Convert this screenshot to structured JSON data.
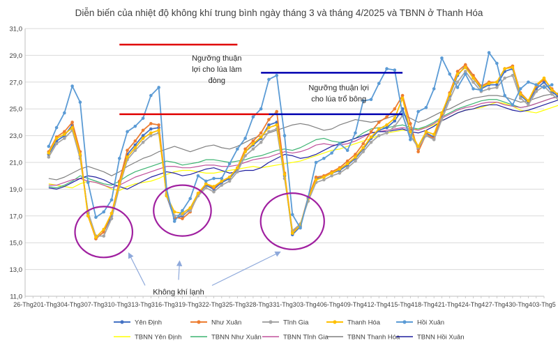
{
  "chart_data": {
    "type": "line",
    "title": "Diễn biến của nhiệt độ không khí trung bình ngày tháng 3 và tháng 4/2025 và TBNN ở Thanh Hóa",
    "xlabel": "",
    "ylabel": "",
    "ylim": [
      11,
      31
    ],
    "y_ticks": [
      "11,0",
      "13,0",
      "15,0",
      "17,0",
      "19,0",
      "21,0",
      "23,0",
      "25,0",
      "27,0",
      "29,0",
      "31,0"
    ],
    "x_start": "2025-02-26",
    "x_end": "2025-05-03",
    "x_tick_labels": [
      "26-Thg2",
      "01-Thg3",
      "04-Thg3",
      "07-Thg3",
      "10-Thg3",
      "13-Thg3",
      "16-Thg3",
      "19-Thg3",
      "22-Thg3",
      "25-Thg3",
      "28-Thg3",
      "31-Thg3",
      "03-Thg4",
      "06-Thg4",
      "09-Thg4",
      "12-Thg4",
      "15-Thg4",
      "18-Thg4",
      "21-Thg4",
      "24-Thg4",
      "27-Thg4",
      "30-Thg4",
      "03-Thg5"
    ],
    "grid": "horizontal",
    "legend_position": "bottom",
    "series": [
      {
        "name": "Yên Định",
        "color": "#4472c4",
        "marker": true,
        "x_first": "2025-03-01",
        "values": [
          21.6,
          22.6,
          23.0,
          23.8,
          21.5,
          17.2,
          15.3,
          15.8,
          17.0,
          19.5,
          21.6,
          22.3,
          23.0,
          23.5,
          23.6,
          18.5,
          16.8,
          17.0,
          17.5,
          18.6,
          19.3,
          19.0,
          19.5,
          19.8,
          20.5,
          21.8,
          22.3,
          22.8,
          23.8,
          24.0,
          20.0,
          15.6,
          16.2,
          18.3,
          19.8,
          19.9,
          20.2,
          20.4,
          20.8,
          21.3,
          22.0,
          22.8,
          23.4,
          23.6,
          24.1,
          25.0,
          23.4,
          22.0,
          23.2,
          22.9,
          24.5,
          26.0,
          27.5,
          28.2,
          27.3,
          26.5,
          26.8,
          26.8,
          27.8,
          28.0,
          26.0,
          25.5,
          26.5,
          27.0,
          26.3,
          25.8,
          26.2
        ]
      },
      {
        "name": "Như Xuân",
        "color": "#ed7d31",
        "marker": true,
        "x_first": "2025-03-01",
        "values": [
          21.8,
          22.9,
          23.3,
          24.0,
          21.8,
          17.0,
          15.3,
          15.8,
          17.2,
          19.6,
          21.9,
          22.6,
          23.4,
          23.9,
          23.8,
          18.6,
          16.9,
          16.8,
          17.3,
          18.6,
          19.4,
          19.1,
          19.6,
          19.9,
          20.6,
          22.0,
          22.6,
          23.2,
          24.2,
          24.8,
          20.2,
          15.8,
          16.3,
          18.4,
          19.9,
          20.0,
          20.3,
          20.6,
          21.1,
          21.6,
          22.4,
          23.3,
          24.0,
          24.4,
          25.0,
          26.0,
          23.9,
          21.8,
          23.1,
          22.8,
          24.6,
          26.2,
          27.8,
          28.3,
          27.5,
          26.7,
          27.0,
          27.0,
          28.0,
          28.2,
          26.2,
          25.6,
          26.7,
          27.2,
          26.5,
          25.9,
          26.4
        ]
      },
      {
        "name": "Tĩnh Gia",
        "color": "#a5a5a5",
        "marker": true,
        "x_first": "2025-03-01",
        "values": [
          21.4,
          22.4,
          22.8,
          23.4,
          21.3,
          17.3,
          15.5,
          15.5,
          16.8,
          19.2,
          21.2,
          21.9,
          22.5,
          23.0,
          23.2,
          18.7,
          17.0,
          17.1,
          17.4,
          18.5,
          19.1,
          18.8,
          19.3,
          19.6,
          20.3,
          21.5,
          22.0,
          22.5,
          23.3,
          23.5,
          19.8,
          15.9,
          16.4,
          18.1,
          19.5,
          19.7,
          20.0,
          20.2,
          20.6,
          21.1,
          21.8,
          22.5,
          23.0,
          23.2,
          23.7,
          24.5,
          23.0,
          22.1,
          23.0,
          22.7,
          24.2,
          25.7,
          27.0,
          27.8,
          27.0,
          26.3,
          26.5,
          26.6,
          27.3,
          27.5,
          25.8,
          25.3,
          26.3,
          26.7,
          26.1,
          25.6,
          26.0
        ]
      },
      {
        "name": "Thanh Hóa",
        "color": "#ffc000",
        "marker": true,
        "x_first": "2025-03-01",
        "values": [
          21.7,
          22.8,
          23.1,
          23.6,
          21.6,
          17.0,
          15.4,
          16.0,
          17.2,
          19.4,
          21.4,
          22.1,
          22.8,
          23.2,
          23.4,
          18.5,
          17.3,
          17.2,
          17.6,
          18.7,
          19.4,
          19.2,
          19.6,
          19.9,
          20.6,
          21.8,
          22.4,
          22.9,
          23.6,
          23.8,
          20.1,
          15.7,
          16.3,
          18.3,
          19.7,
          19.9,
          20.2,
          20.5,
          20.9,
          21.4,
          22.1,
          22.9,
          23.5,
          23.8,
          24.3,
          25.8,
          23.3,
          22.2,
          23.3,
          23.1,
          24.7,
          26.1,
          27.6,
          28.1,
          27.3,
          26.6,
          26.9,
          27.0,
          28.0,
          28.1,
          26.1,
          25.6,
          26.8,
          27.3,
          26.4,
          26.0,
          27.1
        ]
      },
      {
        "name": "Hồi Xuân",
        "color": "#5b9bd5",
        "marker": true,
        "x_first": "2025-03-01",
        "values": [
          22.2,
          23.6,
          24.7,
          26.7,
          25.5,
          19.5,
          16.9,
          17.3,
          18.2,
          21.3,
          23.3,
          23.7,
          24.3,
          26.0,
          26.6,
          19.0,
          16.6,
          17.4,
          18.3,
          20.0,
          19.6,
          19.8,
          19.8,
          20.9,
          22.0,
          22.8,
          24.4,
          25.0,
          27.2,
          27.5,
          23.0,
          17.1,
          16.1,
          18.4,
          21.0,
          21.3,
          21.7,
          22.4,
          21.9,
          23.2,
          25.6,
          25.7,
          26.9,
          28.0,
          27.9,
          24.6,
          22.7,
          24.8,
          25.1,
          26.5,
          28.8,
          27.6,
          26.6,
          27.6,
          26.5,
          26.4,
          29.2,
          28.4,
          26.0,
          25.3,
          26.5,
          27.0,
          26.8,
          26.6,
          26.8
        ]
      },
      {
        "name": "TBNN Yên Định",
        "color": "#ffff00",
        "marker": false,
        "x_first": "2025-03-01",
        "values": [
          19.4,
          19.3,
          19.2,
          19.1,
          19.4,
          19.6,
          19.5,
          19.3,
          19.0,
          18.9,
          19.2,
          19.4,
          19.5,
          19.6,
          19.8,
          20.1,
          20.3,
          20.4,
          20.4,
          20.3,
          20.2,
          20.2,
          20.3,
          20.4,
          20.5,
          20.6,
          20.7,
          20.6,
          20.7,
          20.8,
          20.9,
          21.0,
          21.1,
          21.3,
          21.5,
          21.7,
          21.9,
          22.0,
          22.2,
          22.4,
          22.6,
          22.8,
          23.0,
          23.2,
          23.3,
          23.4,
          23.4,
          23.5,
          23.6,
          23.8,
          24.1,
          24.4,
          24.7,
          24.9,
          25.0,
          25.1,
          25.3,
          25.5,
          25.4,
          25.2,
          24.9,
          24.8,
          24.7,
          24.9,
          25.1,
          25.3,
          25.5
        ]
      },
      {
        "name": "TBNN Như Xuân",
        "color": "#3cb371",
        "marker": false,
        "x_first": "2025-03-01",
        "values": [
          19.2,
          19.1,
          19.3,
          19.6,
          20.0,
          19.8,
          19.6,
          19.4,
          19.3,
          19.6,
          20.0,
          20.3,
          20.5,
          20.7,
          20.9,
          21.1,
          21.0,
          20.8,
          20.9,
          21.0,
          21.2,
          21.2,
          21.1,
          21.0,
          21.1,
          21.2,
          21.4,
          21.5,
          21.7,
          21.9,
          22.0,
          21.9,
          22.1,
          22.4,
          22.7,
          22.8,
          22.6,
          22.5,
          22.6,
          22.8,
          23.2,
          23.5,
          23.6,
          23.6,
          23.7,
          23.8,
          23.6,
          23.5,
          23.7,
          24.0,
          24.4,
          24.7,
          25.0,
          25.2,
          25.4,
          25.6,
          25.7,
          25.7,
          25.5,
          25.3,
          25.1,
          25.2,
          25.4,
          25.6,
          25.8,
          26.0,
          26.1
        ]
      },
      {
        "name": "TBNN Tĩnh Gia",
        "color": "#c0509b",
        "marker": false,
        "x_first": "2025-03-01",
        "values": [
          19.3,
          19.3,
          19.5,
          19.7,
          19.8,
          19.6,
          19.5,
          19.3,
          19.1,
          19.3,
          19.6,
          19.9,
          20.1,
          20.3,
          20.5,
          20.7,
          20.7,
          20.6,
          20.6,
          20.7,
          20.8,
          20.8,
          20.7,
          20.7,
          20.8,
          21.0,
          21.2,
          21.3,
          21.4,
          21.6,
          21.8,
          21.7,
          21.8,
          22.0,
          22.3,
          22.4,
          22.3,
          22.3,
          22.4,
          22.6,
          22.9,
          23.2,
          23.3,
          23.4,
          23.5,
          23.6,
          23.5,
          23.4,
          23.6,
          23.9,
          24.3,
          24.6,
          24.9,
          25.1,
          25.2,
          25.4,
          25.5,
          25.5,
          25.3,
          25.2,
          25.1,
          25.2,
          25.4,
          25.6,
          25.8,
          25.9,
          26.0
        ]
      },
      {
        "name": "TBNN Thanh Hóa",
        "color": "#7f7f7f",
        "marker": false,
        "x_first": "2025-03-01",
        "values": [
          19.8,
          19.7,
          19.9,
          20.2,
          20.5,
          20.7,
          20.5,
          20.3,
          20.0,
          20.3,
          20.7,
          21.0,
          21.3,
          21.5,
          21.8,
          22.0,
          22.2,
          22.0,
          21.8,
          22.0,
          22.2,
          22.3,
          22.1,
          22.0,
          22.2,
          22.5,
          22.8,
          23.0,
          23.2,
          23.4,
          23.6,
          23.8,
          23.9,
          23.8,
          23.6,
          23.4,
          23.5,
          23.8,
          24.0,
          24.2,
          24.1,
          24.0,
          24.1,
          24.3,
          24.5,
          24.6,
          24.3,
          24.0,
          24.2,
          24.5,
          24.8,
          25.0,
          25.3,
          25.6,
          25.8,
          25.9,
          26.0,
          26.0,
          25.9,
          25.7,
          25.5,
          25.6,
          25.8,
          26.0,
          26.1,
          26.2,
          26.3
        ]
      },
      {
        "name": "TBNN Hồi Xuân",
        "color": "#1f1f9e",
        "marker": false,
        "x_first": "2025-03-01",
        "values": [
          19.1,
          19.0,
          19.2,
          19.5,
          19.8,
          20.0,
          19.9,
          19.7,
          19.4,
          19.2,
          19.0,
          19.3,
          19.6,
          19.9,
          20.1,
          20.3,
          20.2,
          20.0,
          20.1,
          20.3,
          20.5,
          20.6,
          20.4,
          20.2,
          20.3,
          20.4,
          20.4,
          20.6,
          21.0,
          21.3,
          21.6,
          21.5,
          21.3,
          21.4,
          21.6,
          21.9,
          22.2,
          22.4,
          22.6,
          22.8,
          23.0,
          23.2,
          23.3,
          23.3,
          23.4,
          23.5,
          23.3,
          23.2,
          23.4,
          23.7,
          24.1,
          24.4,
          24.7,
          24.9,
          25.0,
          25.2,
          25.3,
          25.3,
          25.1,
          24.9,
          24.8,
          24.9,
          25.1,
          25.3,
          25.5,
          25.7,
          25.9
        ]
      }
    ],
    "threshold_lines": [
      {
        "color": "#e00000",
        "y": 29.8,
        "x_start": "2025-03-10",
        "x_end": "2025-03-25"
      },
      {
        "color": "#e00000",
        "y": 24.6,
        "x_start": "2025-03-10",
        "x_end": "2025-03-29"
      },
      {
        "color": "#0000b0",
        "y": 27.7,
        "x_start": "2025-03-28",
        "x_end": "2025-04-15"
      },
      {
        "color": "#0000b0",
        "y": 24.6,
        "x_start": "2025-03-29",
        "x_end": "2025-04-15"
      }
    ],
    "annotations": [
      {
        "text": [
          "Ngưỡng thuận",
          "lợi cho lúa làm",
          "đòng"
        ]
      },
      {
        "text": [
          "Ngưỡng thuận lợi",
          "cho lúa trổ bông"
        ]
      },
      {
        "text": [
          "Không khí lạnh"
        ],
        "arrow_count": 3
      }
    ],
    "highlight_circle_color": "#a020a0",
    "highlight_circles": [
      {
        "x_center": "2025-03-08",
        "y_center": 15.8,
        "y_half_range": 1.9
      },
      {
        "x_center": "2025-03-18",
        "y_center": 17.4,
        "y_half_range": 1.9
      },
      {
        "x_center": "2025-04-01",
        "y_center": 16.6,
        "y_half_range": 2.1
      }
    ]
  }
}
